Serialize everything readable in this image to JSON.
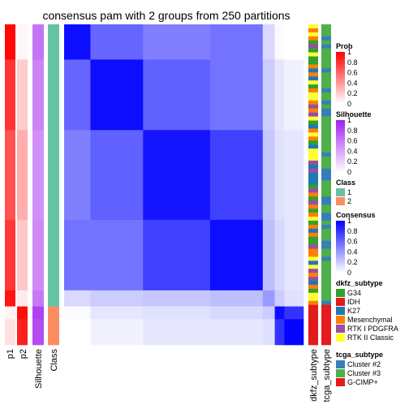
{
  "chart_data": {
    "type": "heatmap",
    "title": "consensus pam with 2 groups from 250 partitions",
    "column_labels": [
      "p1",
      "p2",
      "Silhouette",
      "Class"
    ],
    "bottom_labels": [
      "dkfz_subtype",
      "tcga_subtype"
    ],
    "legends": {
      "prob": {
        "title": "Prob",
        "ticks": [
          "1",
          "0.8",
          "0.6",
          "0.4",
          "0.2",
          "0"
        ],
        "low": "#ffffff",
        "high": "#ff0000"
      },
      "silhouette": {
        "title": "Silhouette",
        "ticks": [
          "1",
          "0.8",
          "0.6",
          "0.4",
          "0.2",
          "0"
        ],
        "low": "#ffffff",
        "high": "#a020f0"
      },
      "class": {
        "title": "Class",
        "items": [
          {
            "label": "1",
            "color": "#66c2a5"
          },
          {
            "label": "2",
            "color": "#fc8d62"
          }
        ]
      },
      "consensus": {
        "title": "Consensus",
        "ticks": [
          "1",
          "0.8",
          "0.6",
          "0.4",
          "0.2",
          "0"
        ],
        "low": "#ffffff",
        "high": "#0000ff"
      },
      "dkfz_subtype": {
        "title": "dkfz_subtype",
        "items": [
          {
            "label": "G34",
            "color": "#33a02c"
          },
          {
            "label": "IDH",
            "color": "#e31a1c"
          },
          {
            "label": "K27",
            "color": "#1f78b4"
          },
          {
            "label": "Mesenchymal",
            "color": "#ff7f00"
          },
          {
            "label": "RTK I PDGFRA",
            "color": "#984ea3"
          },
          {
            "label": "RTK II Classic",
            "color": "#ffff33"
          }
        ]
      },
      "tcga_subtype": {
        "title": "tcga_subtype",
        "items": [
          {
            "label": "Cluster #2",
            "color": "#377eb8"
          },
          {
            "label": "Cluster #3",
            "color": "#4daf4a"
          },
          {
            "label": "G-CIMP+",
            "color": "#e41a1c"
          }
        ]
      }
    },
    "groups": [
      {
        "size": 0.11,
        "cls": 1,
        "p1": 0.97,
        "p2": 0.03,
        "sil": 0.62
      },
      {
        "size": 0.22,
        "cls": 1,
        "p1": 0.8,
        "p2": 0.2,
        "sil": 0.55
      },
      {
        "size": 0.28,
        "cls": 1,
        "p1": 0.68,
        "p2": 0.32,
        "sil": 0.5
      },
      {
        "size": 0.22,
        "cls": 1,
        "p1": 0.78,
        "p2": 0.22,
        "sil": 0.52
      },
      {
        "size": 0.05,
        "cls": 1,
        "p1": 0.92,
        "p2": 0.08,
        "sil": 0.6
      },
      {
        "size": 0.04,
        "cls": 2,
        "p1": 0.05,
        "p2": 0.95,
        "sil": 0.85
      },
      {
        "size": 0.08,
        "cls": 2,
        "p1": 0.12,
        "p2": 0.88,
        "sil": 0.8
      }
    ],
    "consensus_matrix": [
      [
        0.95,
        0.6,
        0.5,
        0.55,
        0.15,
        0.02,
        0.0
      ],
      [
        0.6,
        0.95,
        0.62,
        0.55,
        0.2,
        0.1,
        0.05
      ],
      [
        0.5,
        0.62,
        0.92,
        0.75,
        0.22,
        0.12,
        0.1
      ],
      [
        0.55,
        0.55,
        0.75,
        0.95,
        0.25,
        0.15,
        0.1
      ],
      [
        0.15,
        0.2,
        0.22,
        0.25,
        0.4,
        0.2,
        0.12
      ],
      [
        0.02,
        0.1,
        0.12,
        0.15,
        0.2,
        0.95,
        0.8
      ],
      [
        0.0,
        0.05,
        0.1,
        0.1,
        0.12,
        0.8,
        0.98
      ]
    ]
  }
}
